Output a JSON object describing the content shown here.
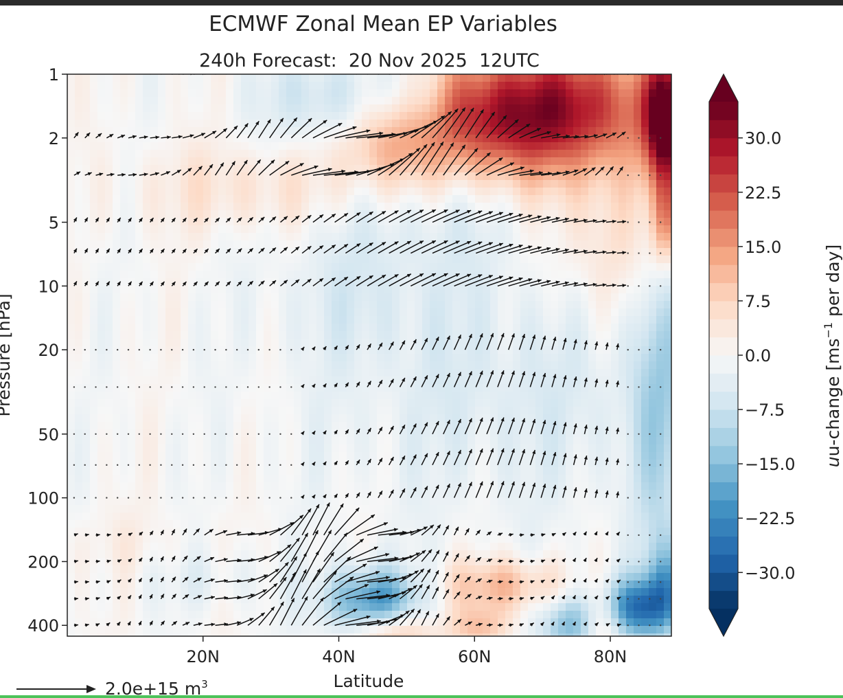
{
  "chart_data": {
    "type": "heatmap",
    "title": "ECMWF Zonal Mean EP Variables",
    "subtitle": {
      "lead": "240h",
      "label": "Forecast:",
      "date": "20 Nov 2025",
      "time": "12UTC"
    },
    "xlabel": "Latitude",
    "ylabel": "Pressure [hPa]",
    "x_ticks": [
      {
        "value": 20,
        "label": "20N"
      },
      {
        "value": 40,
        "label": "40N"
      },
      {
        "value": 60,
        "label": "60N"
      },
      {
        "value": 80,
        "label": "80N"
      }
    ],
    "xlim": [
      0,
      89
    ],
    "y_scale": "log",
    "y_inverted": true,
    "ylim": [
      1,
      450
    ],
    "y_ticks": [
      {
        "value": 1,
        "label": "1"
      },
      {
        "value": 2,
        "label": "2"
      },
      {
        "value": 5,
        "label": "5"
      },
      {
        "value": 10,
        "label": "10"
      },
      {
        "value": 20,
        "label": "20"
      },
      {
        "value": 50,
        "label": "50"
      },
      {
        "value": 100,
        "label": "100"
      },
      {
        "value": 200,
        "label": "200"
      },
      {
        "value": 400,
        "label": "400"
      }
    ],
    "quiver_levels_hpa": [
      1,
      2,
      3,
      5,
      7,
      10,
      20,
      30,
      50,
      70,
      100,
      150,
      200,
      250,
      300,
      400
    ],
    "quiver_key": {
      "label": "2.0e+15 m",
      "exponent": "3"
    },
    "colorbar": {
      "label": "u-change [ms",
      "label_sup": "−1",
      "label_tail": " per day]",
      "min": -35,
      "max": 35,
      "extend": "both",
      "ticks": [
        {
          "value": 30,
          "label": "30.0"
        },
        {
          "value": 22.5,
          "label": "22.5"
        },
        {
          "value": 15,
          "label": "15.0"
        },
        {
          "value": 7.5,
          "label": "7.5"
        },
        {
          "value": 0,
          "label": "0.0"
        },
        {
          "value": -7.5,
          "label": "−7.5"
        },
        {
          "value": -15,
          "label": "−15.0"
        },
        {
          "value": -22.5,
          "label": "−22.5"
        },
        {
          "value": -30,
          "label": "−30.0"
        }
      ]
    },
    "field_blobs": [
      {
        "lat": 72,
        "p": 1.4,
        "slat": 13,
        "sdec": 0.22,
        "v": 26
      },
      {
        "lat": 62,
        "p": 1.8,
        "slat": 9,
        "sdec": 0.18,
        "v": 12
      },
      {
        "lat": 88,
        "p": 1.7,
        "slat": 2,
        "sdec": 0.22,
        "v": 33
      },
      {
        "lat": 39,
        "p": 1.3,
        "slat": 7,
        "sdec": 0.15,
        "v": -9
      },
      {
        "lat": 52,
        "p": 1.3,
        "slat": 3,
        "sdec": 0.14,
        "v": -8
      },
      {
        "lat": 47,
        "p": 2.2,
        "slat": 5,
        "sdec": 0.15,
        "v": 10
      },
      {
        "lat": 28,
        "p": 3.5,
        "slat": 12,
        "sdec": 0.15,
        "v": 6
      },
      {
        "lat": 80,
        "p": 6,
        "slat": 7,
        "sdec": 0.3,
        "v": 7
      },
      {
        "lat": 88,
        "p": 5,
        "slat": 1.5,
        "sdec": 0.15,
        "v": 14
      },
      {
        "lat": 50,
        "p": 4.5,
        "slat": 14,
        "sdec": 0.22,
        "v": -4
      },
      {
        "lat": 66,
        "p": 28,
        "slat": 20,
        "sdec": 0.45,
        "v": -5
      },
      {
        "lat": 42,
        "p": 12,
        "slat": 8,
        "sdec": 0.2,
        "v": -3
      },
      {
        "lat": 87,
        "p": 30,
        "slat": 3,
        "sdec": 0.6,
        "v": -10
      },
      {
        "lat": 45,
        "p": 310,
        "slat": 5,
        "sdec": 0.11,
        "v": -22
      },
      {
        "lat": 48,
        "p": 430,
        "slat": 4,
        "sdec": 0.08,
        "v": 14
      },
      {
        "lat": 64,
        "p": 260,
        "slat": 6,
        "sdec": 0.09,
        "v": 12
      },
      {
        "lat": 61,
        "p": 410,
        "slat": 3,
        "sdec": 0.07,
        "v": 10
      },
      {
        "lat": 74,
        "p": 400,
        "slat": 3,
        "sdec": 0.1,
        "v": -16
      },
      {
        "lat": 79,
        "p": 400,
        "slat": 2,
        "sdec": 0.1,
        "v": 9
      },
      {
        "lat": 84,
        "p": 330,
        "slat": 3.5,
        "sdec": 0.1,
        "v": -24
      },
      {
        "lat": 88,
        "p": 260,
        "slat": 2,
        "sdec": 0.15,
        "v": -14
      },
      {
        "lat": 20,
        "p": 240,
        "slat": 7,
        "sdec": 0.1,
        "v": -3
      },
      {
        "lat": 8,
        "p": 170,
        "slat": 8,
        "sdec": 0.12,
        "v": 2
      }
    ]
  }
}
